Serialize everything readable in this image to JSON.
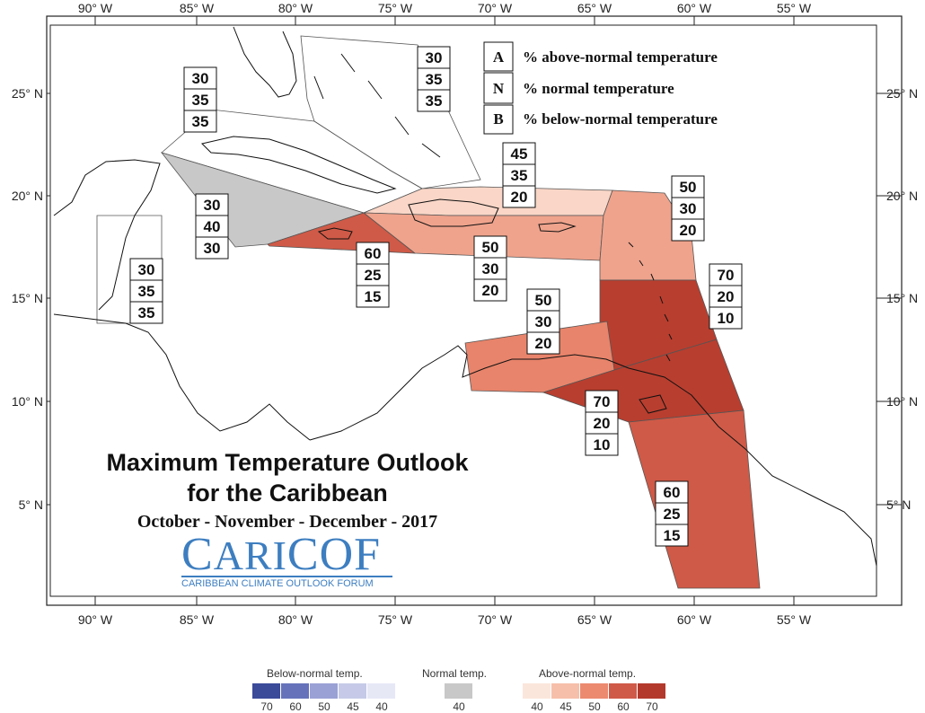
{
  "title": {
    "line1": "Maximum Temperature Outlook",
    "line2": "for the Caribbean",
    "period": "October - November - December - 2017"
  },
  "logo": {
    "wordmark_first": "C",
    "wordmark_rest": "ARI",
    "wordmark_end": "COF",
    "subtitle": "CARIBBEAN CLIMATE OUTLOOK FORUM"
  },
  "key": [
    {
      "letter": "A",
      "text": "% above-normal temperature"
    },
    {
      "letter": "N",
      "text": "% normal temperature"
    },
    {
      "letter": "B",
      "text": "% below-normal temperature"
    }
  ],
  "axes": {
    "longitude_labels": [
      "90° W",
      "85° W",
      "80° W",
      "75° W",
      "70° W",
      "65° W",
      "60° W",
      "55° W"
    ],
    "latitude_labels": [
      "25° N",
      "20° N",
      "15° N",
      "10° N",
      "5° N"
    ]
  },
  "regions": [
    {
      "id": "bahamas",
      "above": "30",
      "normal": "35",
      "below": "35",
      "fill": "none"
    },
    {
      "id": "cuba",
      "above": "30",
      "normal": "35",
      "below": "35",
      "fill": "none"
    },
    {
      "id": "western-caribbean",
      "above": "30",
      "normal": "40",
      "below": "30",
      "fill": "#c8c8c8"
    },
    {
      "id": "belize",
      "above": "30",
      "normal": "35",
      "below": "35",
      "fill": "none"
    },
    {
      "id": "jamaica",
      "above": "60",
      "normal": "25",
      "below": "15",
      "fill": "#cf5a47"
    },
    {
      "id": "turks-caicos",
      "above": "45",
      "normal": "35",
      "below": "20",
      "fill": "#f9d6c7"
    },
    {
      "id": "greater-antilles",
      "above": "50",
      "normal": "30",
      "below": "20",
      "fill": "#efa38c"
    },
    {
      "id": "leeward-islands",
      "above": "50",
      "normal": "30",
      "below": "20",
      "fill": "#efa38c"
    },
    {
      "id": "windward-islands",
      "above": "70",
      "normal": "20",
      "below": "10",
      "fill": "#b83e2f"
    },
    {
      "id": "abc-islands",
      "above": "50",
      "normal": "30",
      "below": "20",
      "fill": "#e8846b"
    },
    {
      "id": "trinidad",
      "above": "70",
      "normal": "20",
      "below": "10",
      "fill": "#b83e2f"
    },
    {
      "id": "guianas",
      "above": "60",
      "normal": "25",
      "below": "15",
      "fill": "#cf5a47"
    }
  ],
  "scale": {
    "below_title": "Below-normal temp.",
    "normal_title": "Normal temp.",
    "above_title": "Above-normal temp.",
    "below_values": [
      "70",
      "60",
      "50",
      "45",
      "40"
    ],
    "below_colors": [
      "#3b4a99",
      "#6673bb",
      "#9aa1d4",
      "#c6cae8",
      "#e6e8f6"
    ],
    "normal_values": [
      "40"
    ],
    "normal_colors": [
      "#c8c8c8"
    ],
    "above_values": [
      "40",
      "45",
      "50",
      "60",
      "70"
    ],
    "above_colors": [
      "#fbe6dc",
      "#f6bfa9",
      "#ec8a70",
      "#cf5a47",
      "#b3392c"
    ]
  }
}
